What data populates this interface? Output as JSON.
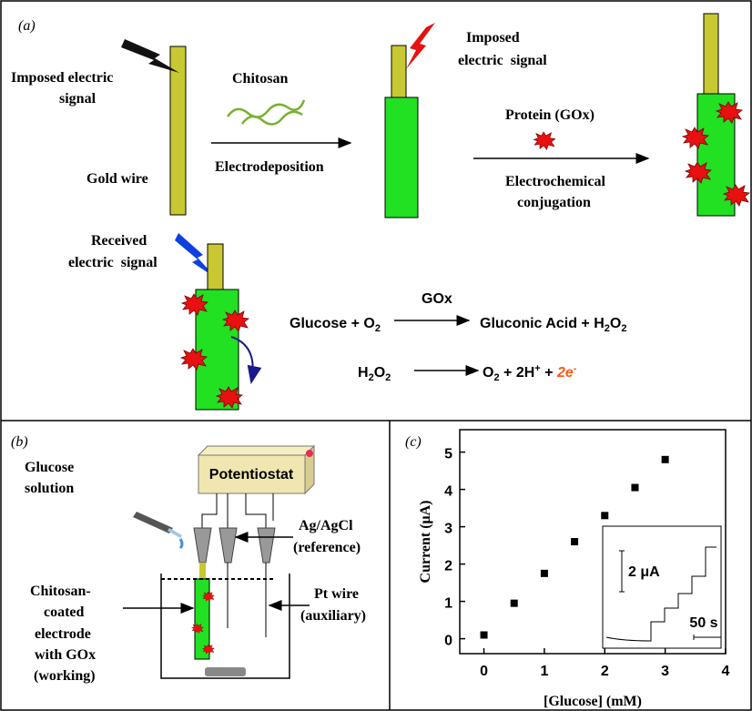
{
  "panel_a": {
    "label": "(a)",
    "signal_1": [
      "Imposed electric",
      "signal"
    ],
    "gold_wire": "Gold wire",
    "chitosan": "Chitosan",
    "step_1": "Electrodeposition",
    "signal_2": [
      "Imposed",
      "electric  signal"
    ],
    "protein": "Protein (GOx)",
    "step_2": [
      "Electrochemical",
      "conjugation"
    ],
    "received": [
      "Received",
      "electric  signal"
    ],
    "reaction_1": {
      "left": [
        "Glucose + O",
        "2"
      ],
      "catalyst": "GOx",
      "right": [
        "Gluconic Acid + H",
        "2",
        "O",
        "2"
      ]
    },
    "reaction_2": {
      "left": [
        "H",
        "2",
        "O",
        "2"
      ],
      "right": [
        "O",
        "2",
        " + 2H",
        "+",
        " + ",
        "2e",
        "-"
      ]
    }
  },
  "panel_b": {
    "label": "(b)",
    "device": "Potentiostat",
    "solution": [
      "Glucose",
      "solution"
    ],
    "reference": [
      "Ag/AgCl",
      "(reference)"
    ],
    "working": [
      "Chitosan-",
      "coated",
      "electrode",
      "with GOx",
      "(working)"
    ],
    "auxiliary": [
      "Pt wire",
      "(auxiliary)"
    ]
  },
  "chart_data": {
    "type": "scatter",
    "label": "(c)",
    "xlabel": "[Glucose] (mM)",
    "ylabel": "Current (μA)",
    "x": [
      0,
      0.5,
      1,
      1.5,
      2,
      2.5,
      3
    ],
    "values": [
      0.1,
      0.95,
      1.75,
      2.6,
      3.3,
      4.05,
      4.8
    ],
    "color": "#000000",
    "xlim": [
      -0.4,
      4
    ],
    "ylim": [
      -0.4,
      5.6
    ],
    "xticks": [
      0,
      1,
      2,
      3,
      4
    ],
    "yticks": [
      0,
      1,
      2,
      3,
      4,
      5
    ],
    "inset": {
      "y_scale": "2 μA",
      "x_scale": "50 s"
    }
  }
}
